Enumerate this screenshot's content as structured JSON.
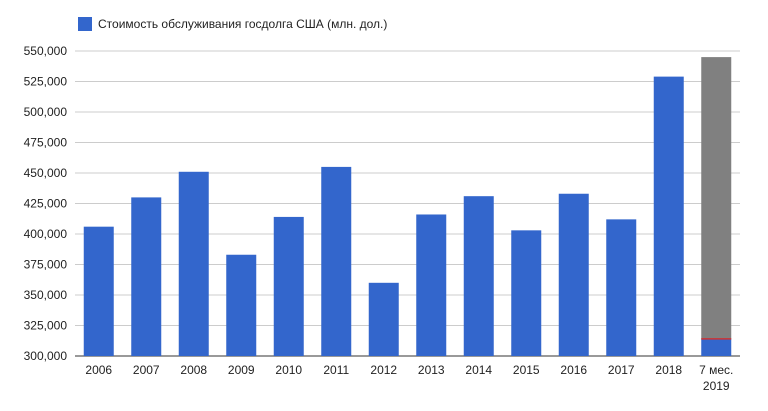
{
  "chart_data": {
    "type": "bar",
    "title": "",
    "xlabel": "",
    "ylabel": "",
    "categories": [
      "2006",
      "2007",
      "2008",
      "2009",
      "2010",
      "2011",
      "2012",
      "2013",
      "2014",
      "2015",
      "2016",
      "2017",
      "2018",
      [
        "7 мес.",
        "2019"
      ]
    ],
    "series": [
      {
        "name": "Стоимость обслуживания госдолга США (млн. дол.)",
        "color": "#3366cc",
        "values": [
          406000,
          430000,
          451000,
          383000,
          414000,
          455000,
          360000,
          416000,
          431000,
          403000,
          433000,
          412000,
          529000,
          314000
        ]
      }
    ],
    "extension": {
      "category_index": 13,
      "from": 314000,
      "to": 545000,
      "color": "#808080",
      "marker_color": "#cc3333"
    },
    "ylim": [
      300000,
      550000
    ],
    "yticks": [
      "300,000",
      "325,000",
      "350,000",
      "375,000",
      "400,000",
      "425,000",
      "450,000",
      "475,000",
      "500,000",
      "525,000",
      "550,000"
    ],
    "ytick_values": [
      300000,
      325000,
      350000,
      375000,
      400000,
      425000,
      450000,
      475000,
      500000,
      525000,
      550000
    ],
    "grid": true,
    "legend_position": "top-left"
  }
}
